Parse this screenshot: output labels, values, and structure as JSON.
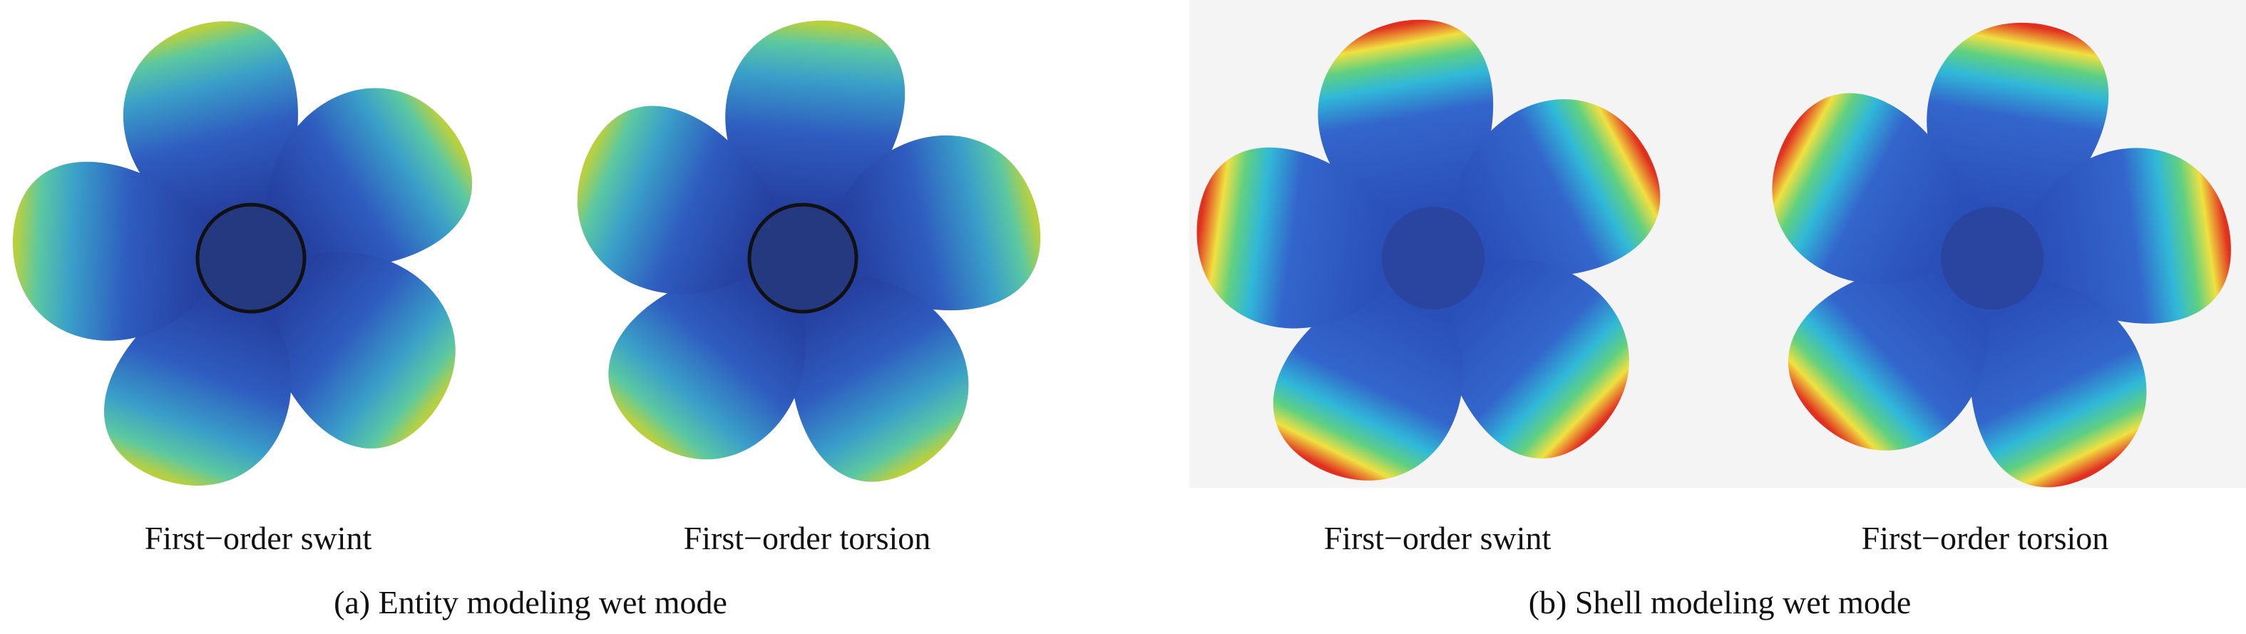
{
  "panels": [
    {
      "images": [
        {
          "caption": "First−order swint"
        },
        {
          "caption": "First−order torsion"
        }
      ],
      "caption": "(a) Entity modeling wet mode"
    },
    {
      "images": [
        {
          "caption": "First−order swint"
        },
        {
          "caption": "First−order torsion"
        }
      ],
      "caption": "(b) Shell modeling wet mode"
    }
  ]
}
